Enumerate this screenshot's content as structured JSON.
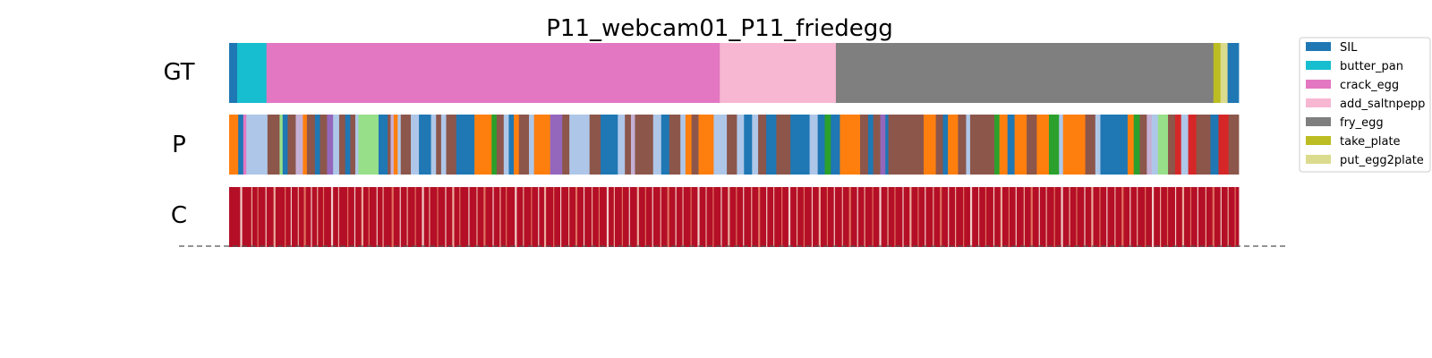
{
  "chart_data": {
    "type": "segmentation",
    "title": "P11_webcam01_P11_friedegg",
    "rows": [
      {
        "label": "GT",
        "segments": [
          {
            "start": 0.0,
            "end": 0.008,
            "class": "SIL"
          },
          {
            "start": 0.008,
            "end": 0.037,
            "class": "butter_pan"
          },
          {
            "start": 0.037,
            "end": 0.486,
            "class": "crack_egg"
          },
          {
            "start": 0.486,
            "end": 0.601,
            "class": "add_saltnpepper"
          },
          {
            "start": 0.601,
            "end": 0.975,
            "class": "fry_egg"
          },
          {
            "start": 0.975,
            "end": 0.982,
            "class": "take_plate"
          },
          {
            "start": 0.982,
            "end": 0.989,
            "class": "put_egg2plate"
          },
          {
            "start": 0.989,
            "end": 1.0,
            "class": "SIL"
          }
        ]
      },
      {
        "label": "P",
        "segments": [
          {
            "start": 0.0,
            "end": 0.009,
            "class": "orange"
          },
          {
            "start": 0.009,
            "end": 0.014,
            "class": "SIL"
          },
          {
            "start": 0.014,
            "end": 0.017,
            "class": "crack_egg"
          },
          {
            "start": 0.017,
            "end": 0.038,
            "class": "lightblue"
          },
          {
            "start": 0.038,
            "end": 0.05,
            "class": "brown"
          },
          {
            "start": 0.05,
            "end": 0.053,
            "class": "lightgreen"
          },
          {
            "start": 0.053,
            "end": 0.058,
            "class": "SIL"
          },
          {
            "start": 0.058,
            "end": 0.066,
            "class": "brown"
          },
          {
            "start": 0.066,
            "end": 0.073,
            "class": "lavender"
          },
          {
            "start": 0.073,
            "end": 0.077,
            "class": "orange"
          },
          {
            "start": 0.077,
            "end": 0.085,
            "class": "brown"
          },
          {
            "start": 0.085,
            "end": 0.09,
            "class": "SIL"
          },
          {
            "start": 0.09,
            "end": 0.097,
            "class": "brown"
          },
          {
            "start": 0.097,
            "end": 0.103,
            "class": "purple"
          },
          {
            "start": 0.103,
            "end": 0.109,
            "class": "lightblue"
          },
          {
            "start": 0.109,
            "end": 0.115,
            "class": "brown"
          },
          {
            "start": 0.115,
            "end": 0.12,
            "class": "SIL"
          },
          {
            "start": 0.12,
            "end": 0.125,
            "class": "brown"
          },
          {
            "start": 0.125,
            "end": 0.128,
            "class": "lightblue"
          },
          {
            "start": 0.128,
            "end": 0.148,
            "class": "lightgreen"
          },
          {
            "start": 0.148,
            "end": 0.157,
            "class": "SIL"
          },
          {
            "start": 0.157,
            "end": 0.16,
            "class": "brown"
          },
          {
            "start": 0.16,
            "end": 0.163,
            "class": "lavender"
          },
          {
            "start": 0.163,
            "end": 0.167,
            "class": "orange"
          },
          {
            "start": 0.167,
            "end": 0.17,
            "class": "lightblue"
          },
          {
            "start": 0.17,
            "end": 0.18,
            "class": "brown"
          },
          {
            "start": 0.18,
            "end": 0.188,
            "class": "lightblue"
          },
          {
            "start": 0.188,
            "end": 0.2,
            "class": "SIL"
          },
          {
            "start": 0.2,
            "end": 0.205,
            "class": "lightblue"
          },
          {
            "start": 0.205,
            "end": 0.21,
            "class": "brown"
          },
          {
            "start": 0.21,
            "end": 0.215,
            "class": "lightblue"
          },
          {
            "start": 0.215,
            "end": 0.225,
            "class": "brown"
          },
          {
            "start": 0.225,
            "end": 0.243,
            "class": "SIL"
          },
          {
            "start": 0.243,
            "end": 0.26,
            "class": "orange"
          },
          {
            "start": 0.26,
            "end": 0.265,
            "class": "green"
          },
          {
            "start": 0.265,
            "end": 0.272,
            "class": "brown"
          },
          {
            "start": 0.272,
            "end": 0.277,
            "class": "lightblue"
          },
          {
            "start": 0.277,
            "end": 0.282,
            "class": "SIL"
          },
          {
            "start": 0.282,
            "end": 0.287,
            "class": "orange"
          },
          {
            "start": 0.287,
            "end": 0.297,
            "class": "brown"
          },
          {
            "start": 0.297,
            "end": 0.302,
            "class": "lightblue"
          },
          {
            "start": 0.302,
            "end": 0.318,
            "class": "orange"
          },
          {
            "start": 0.318,
            "end": 0.33,
            "class": "purple"
          },
          {
            "start": 0.33,
            "end": 0.337,
            "class": "brown"
          },
          {
            "start": 0.337,
            "end": 0.357,
            "class": "lightblue"
          },
          {
            "start": 0.357,
            "end": 0.368,
            "class": "brown"
          },
          {
            "start": 0.368,
            "end": 0.385,
            "class": "SIL"
          },
          {
            "start": 0.385,
            "end": 0.392,
            "class": "lightblue"
          },
          {
            "start": 0.392,
            "end": 0.398,
            "class": "brown"
          },
          {
            "start": 0.398,
            "end": 0.402,
            "class": "lavender"
          },
          {
            "start": 0.402,
            "end": 0.42,
            "class": "brown"
          },
          {
            "start": 0.42,
            "end": 0.428,
            "class": "lightblue"
          },
          {
            "start": 0.428,
            "end": 0.436,
            "class": "SIL"
          },
          {
            "start": 0.436,
            "end": 0.447,
            "class": "brown"
          },
          {
            "start": 0.447,
            "end": 0.452,
            "class": "lightblue"
          },
          {
            "start": 0.452,
            "end": 0.458,
            "class": "orange"
          },
          {
            "start": 0.458,
            "end": 0.465,
            "class": "brown"
          },
          {
            "start": 0.465,
            "end": 0.48,
            "class": "orange"
          },
          {
            "start": 0.48,
            "end": 0.493,
            "class": "lightblue"
          },
          {
            "start": 0.493,
            "end": 0.503,
            "class": "brown"
          },
          {
            "start": 0.503,
            "end": 0.51,
            "class": "lightblue"
          },
          {
            "start": 0.51,
            "end": 0.518,
            "class": "SIL"
          },
          {
            "start": 0.518,
            "end": 0.524,
            "class": "lightblue"
          },
          {
            "start": 0.524,
            "end": 0.532,
            "class": "brown"
          },
          {
            "start": 0.532,
            "end": 0.542,
            "class": "SIL"
          },
          {
            "start": 0.542,
            "end": 0.556,
            "class": "brown"
          },
          {
            "start": 0.556,
            "end": 0.575,
            "class": "SIL"
          },
          {
            "start": 0.575,
            "end": 0.583,
            "class": "lightblue"
          },
          {
            "start": 0.583,
            "end": 0.59,
            "class": "SIL"
          },
          {
            "start": 0.59,
            "end": 0.596,
            "class": "green"
          },
          {
            "start": 0.596,
            "end": 0.605,
            "class": "SIL"
          },
          {
            "start": 0.605,
            "end": 0.625,
            "class": "orange"
          },
          {
            "start": 0.625,
            "end": 0.633,
            "class": "brown"
          },
          {
            "start": 0.633,
            "end": 0.638,
            "class": "SIL"
          },
          {
            "start": 0.638,
            "end": 0.645,
            "class": "brown"
          },
          {
            "start": 0.645,
            "end": 0.65,
            "class": "purple"
          },
          {
            "start": 0.65,
            "end": 0.653,
            "class": "SIL"
          },
          {
            "start": 0.653,
            "end": 0.688,
            "class": "brown"
          },
          {
            "start": 0.688,
            "end": 0.7,
            "class": "orange"
          },
          {
            "start": 0.7,
            "end": 0.707,
            "class": "brown"
          },
          {
            "start": 0.707,
            "end": 0.712,
            "class": "SIL"
          },
          {
            "start": 0.712,
            "end": 0.722,
            "class": "orange"
          },
          {
            "start": 0.722,
            "end": 0.73,
            "class": "brown"
          },
          {
            "start": 0.73,
            "end": 0.734,
            "class": "lightblue"
          },
          {
            "start": 0.734,
            "end": 0.758,
            "class": "brown"
          },
          {
            "start": 0.758,
            "end": 0.763,
            "class": "green"
          },
          {
            "start": 0.763,
            "end": 0.771,
            "class": "orange"
          },
          {
            "start": 0.771,
            "end": 0.778,
            "class": "SIL"
          },
          {
            "start": 0.778,
            "end": 0.79,
            "class": "orange"
          },
          {
            "start": 0.79,
            "end": 0.8,
            "class": "brown"
          },
          {
            "start": 0.8,
            "end": 0.812,
            "class": "orange"
          },
          {
            "start": 0.812,
            "end": 0.822,
            "class": "green"
          },
          {
            "start": 0.822,
            "end": 0.826,
            "class": "lightblue"
          },
          {
            "start": 0.826,
            "end": 0.848,
            "class": "orange"
          },
          {
            "start": 0.848,
            "end": 0.858,
            "class": "brown"
          },
          {
            "start": 0.858,
            "end": 0.863,
            "class": "lightblue"
          },
          {
            "start": 0.863,
            "end": 0.89,
            "class": "SIL"
          },
          {
            "start": 0.89,
            "end": 0.896,
            "class": "orange"
          },
          {
            "start": 0.896,
            "end": 0.902,
            "class": "green"
          },
          {
            "start": 0.902,
            "end": 0.909,
            "class": "brown"
          },
          {
            "start": 0.909,
            "end": 0.914,
            "class": "lavender"
          },
          {
            "start": 0.914,
            "end": 0.92,
            "class": "lightblue"
          },
          {
            "start": 0.92,
            "end": 0.93,
            "class": "lightgreen"
          },
          {
            "start": 0.93,
            "end": 0.937,
            "class": "brown"
          },
          {
            "start": 0.937,
            "end": 0.943,
            "class": "red"
          },
          {
            "start": 0.943,
            "end": 0.95,
            "class": "lightblue"
          },
          {
            "start": 0.95,
            "end": 0.958,
            "class": "red"
          },
          {
            "start": 0.958,
            "end": 0.972,
            "class": "brown"
          },
          {
            "start": 0.972,
            "end": 0.98,
            "class": "SIL"
          },
          {
            "start": 0.98,
            "end": 0.99,
            "class": "red"
          },
          {
            "start": 0.99,
            "end": 1.0,
            "class": "brown"
          }
        ]
      },
      {
        "label": "C",
        "segments": [
          {
            "start": 0.0,
            "end": 1.0,
            "class": "confidence_high"
          }
        ],
        "streaks": [
          0.011,
          0.022,
          0.028,
          0.036,
          0.044,
          0.055,
          0.061,
          0.068,
          0.074,
          0.081,
          0.087,
          0.093,
          0.101,
          0.108,
          0.117,
          0.124,
          0.131,
          0.138,
          0.146,
          0.152,
          0.161,
          0.169,
          0.176,
          0.184,
          0.191,
          0.198,
          0.206,
          0.214,
          0.221,
          0.228,
          0.237,
          0.245,
          0.252,
          0.261,
          0.268,
          0.274,
          0.283,
          0.291,
          0.299,
          0.306,
          0.312,
          0.321,
          0.328,
          0.336,
          0.343,
          0.351,
          0.359,
          0.366,
          0.374,
          0.381,
          0.389,
          0.396,
          0.404,
          0.412,
          0.419,
          0.427,
          0.434,
          0.442,
          0.449,
          0.457,
          0.464,
          0.472,
          0.479,
          0.487,
          0.494,
          0.502,
          0.509,
          0.517,
          0.524,
          0.532,
          0.539,
          0.547,
          0.554,
          0.562,
          0.569,
          0.577,
          0.584,
          0.592,
          0.599,
          0.607,
          0.614,
          0.622,
          0.629,
          0.637,
          0.644,
          0.652,
          0.659,
          0.667,
          0.674,
          0.682,
          0.689,
          0.697,
          0.704,
          0.712,
          0.719,
          0.727,
          0.734,
          0.742,
          0.749,
          0.757,
          0.764,
          0.772,
          0.779,
          0.787,
          0.794,
          0.802,
          0.809,
          0.817,
          0.824,
          0.832,
          0.839,
          0.847,
          0.854,
          0.862,
          0.869,
          0.877,
          0.884,
          0.892,
          0.899,
          0.907,
          0.914,
          0.922,
          0.929,
          0.937,
          0.944,
          0.952,
          0.959,
          0.967,
          0.974,
          0.982,
          0.989,
          0.996
        ]
      }
    ],
    "colors": {
      "SIL": "#1f77b4",
      "butter_pan": "#17becf",
      "crack_egg": "#e377c2",
      "add_saltnpepper": "#f7b6d2",
      "fry_egg": "#7f7f7f",
      "take_plate": "#bcbd22",
      "put_egg2plate": "#dbdb8d",
      "orange": "#ff7f0e",
      "lightblue": "#aec7e8",
      "brown": "#8c564b",
      "lightgreen": "#98df8a",
      "green": "#2ca02c",
      "purple": "#9467bd",
      "lavender": "#c5b0d5",
      "red": "#d62728",
      "confidence_high": "#b40f26",
      "confidence_mid": "#e8826a",
      "confidence_low": "#f4c7b0",
      "confidence_white": "#fbeee6"
    },
    "legend": {
      "placement": "right",
      "entries": [
        {
          "label": "SIL",
          "class": "SIL"
        },
        {
          "label": "butter_pan",
          "class": "butter_pan"
        },
        {
          "label": "crack_egg",
          "class": "crack_egg"
        },
        {
          "label": "add_saltnpepp",
          "class": "add_saltnpepper"
        },
        {
          "label": "fry_egg",
          "class": "fry_egg"
        },
        {
          "label": "take_plate",
          "class": "take_plate"
        },
        {
          "label": "put_egg2plate",
          "class": "put_egg2plate"
        }
      ]
    },
    "grid": false
  }
}
